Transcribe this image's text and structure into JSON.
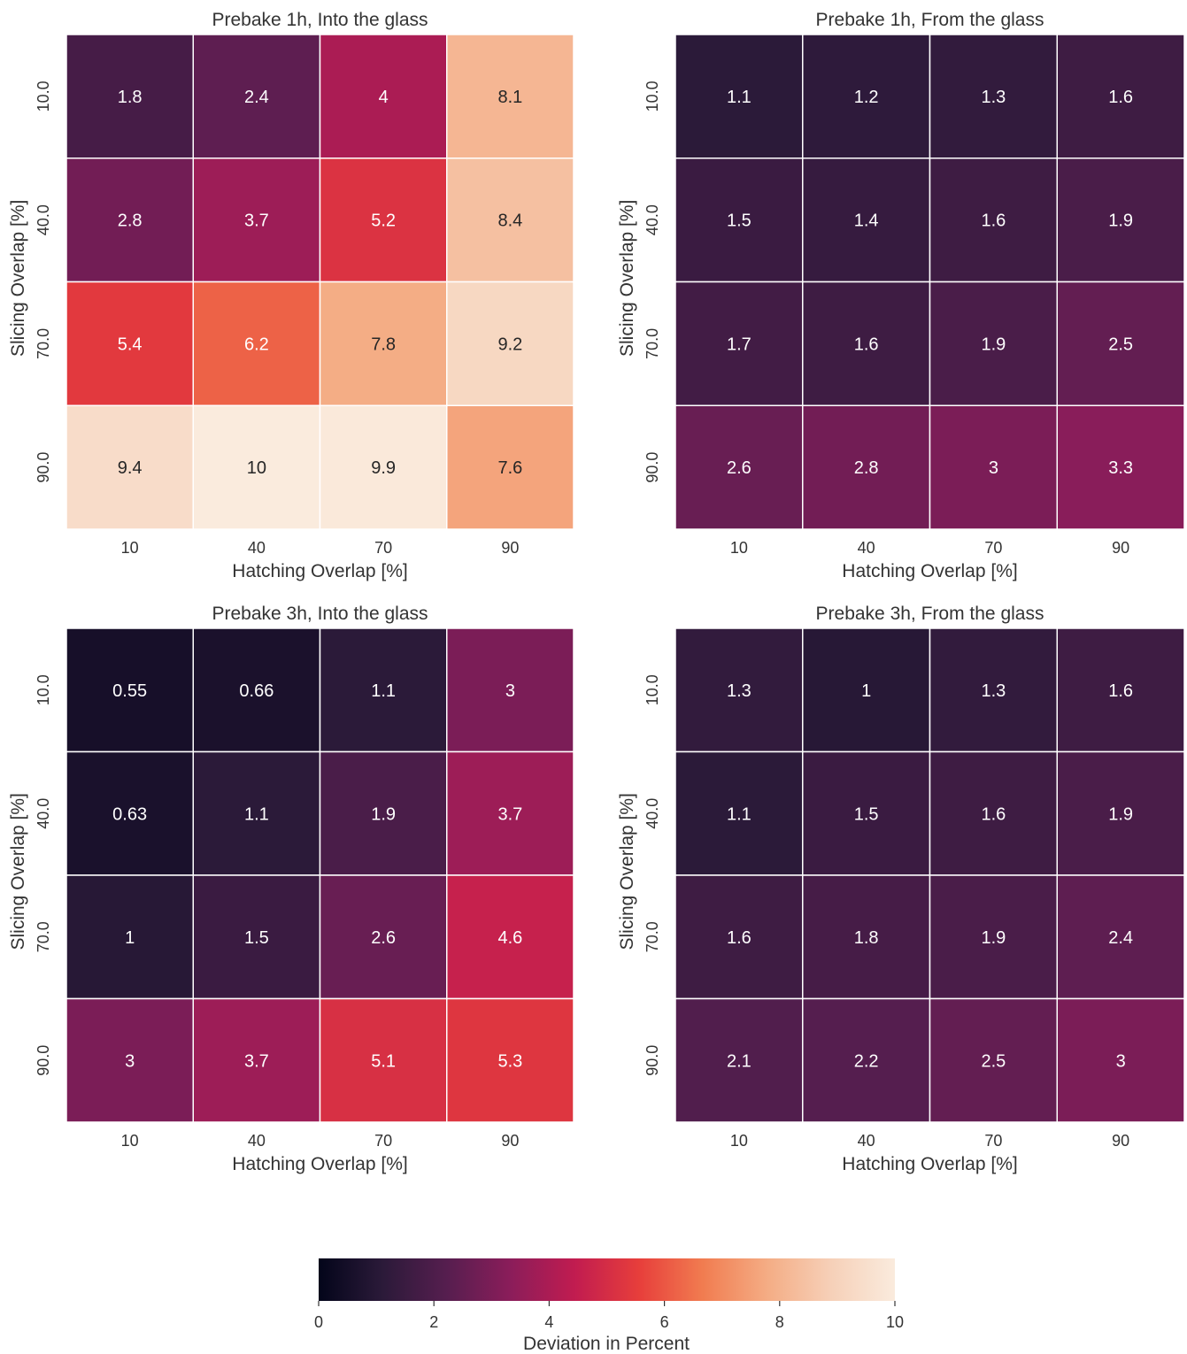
{
  "colorbar": {
    "label": "Deviation in Percent",
    "min": 0,
    "max": 10,
    "ticks": [
      "0",
      "2",
      "4",
      "6",
      "8",
      "10"
    ],
    "colormap": "rocket",
    "stops": [
      "#03051a",
      "#2b1a39",
      "#561e4f",
      "#8b1d5a",
      "#c11c50",
      "#e73e3b",
      "#f17c50",
      "#f4ac84",
      "#f6d0b8",
      "#faebdd"
    ]
  },
  "chart_data": [
    {
      "type": "heatmap",
      "title": "Prebake 1h, Into the glass",
      "xlabel": "Hatching Overlap [%]",
      "ylabel": "Slicing Overlap [%]",
      "x_ticks": [
        "10",
        "40",
        "70",
        "90"
      ],
      "y_ticks": [
        "10.0",
        "40.0",
        "70.0",
        "90.0"
      ],
      "values": [
        [
          1.8,
          2.4,
          4,
          8.1
        ],
        [
          2.8,
          3.7,
          5.2,
          8.4
        ],
        [
          5.4,
          6.2,
          7.8,
          9.2
        ],
        [
          9.4,
          10,
          9.9,
          7.6
        ]
      ],
      "vmin": 0,
      "vmax": 10
    },
    {
      "type": "heatmap",
      "title": "Prebake 1h, From the glass",
      "xlabel": "Hatching Overlap [%]",
      "ylabel": "Slicing Overlap [%]",
      "x_ticks": [
        "10",
        "40",
        "70",
        "90"
      ],
      "y_ticks": [
        "10.0",
        "40.0",
        "70.0",
        "90.0"
      ],
      "values": [
        [
          1.1,
          1.2,
          1.3,
          1.6
        ],
        [
          1.5,
          1.4,
          1.6,
          1.9
        ],
        [
          1.7,
          1.6,
          1.9,
          2.5
        ],
        [
          2.6,
          2.8,
          3,
          3.3
        ]
      ],
      "vmin": 0,
      "vmax": 10
    },
    {
      "type": "heatmap",
      "title": "Prebake 3h, Into the glass",
      "xlabel": "Hatching Overlap [%]",
      "ylabel": "Slicing Overlap [%]",
      "x_ticks": [
        "10",
        "40",
        "70",
        "90"
      ],
      "y_ticks": [
        "10.0",
        "40.0",
        "70.0",
        "90.0"
      ],
      "values": [
        [
          0.55,
          0.66,
          1.1,
          3
        ],
        [
          0.63,
          1.1,
          1.9,
          3.7
        ],
        [
          1,
          1.5,
          2.6,
          4.6
        ],
        [
          3,
          3.7,
          5.1,
          5.3
        ]
      ],
      "vmin": 0,
      "vmax": 10
    },
    {
      "type": "heatmap",
      "title": "Prebake 3h, From the glass",
      "xlabel": "Hatching Overlap [%]",
      "ylabel": "Slicing Overlap [%]",
      "x_ticks": [
        "10",
        "40",
        "70",
        "90"
      ],
      "y_ticks": [
        "10.0",
        "40.0",
        "70.0",
        "90.0"
      ],
      "values": [
        [
          1.3,
          1,
          1.3,
          1.6
        ],
        [
          1.1,
          1.5,
          1.6,
          1.9
        ],
        [
          1.6,
          1.8,
          1.9,
          2.4
        ],
        [
          2.1,
          2.2,
          2.5,
          3
        ]
      ],
      "vmin": 0,
      "vmax": 10
    }
  ]
}
